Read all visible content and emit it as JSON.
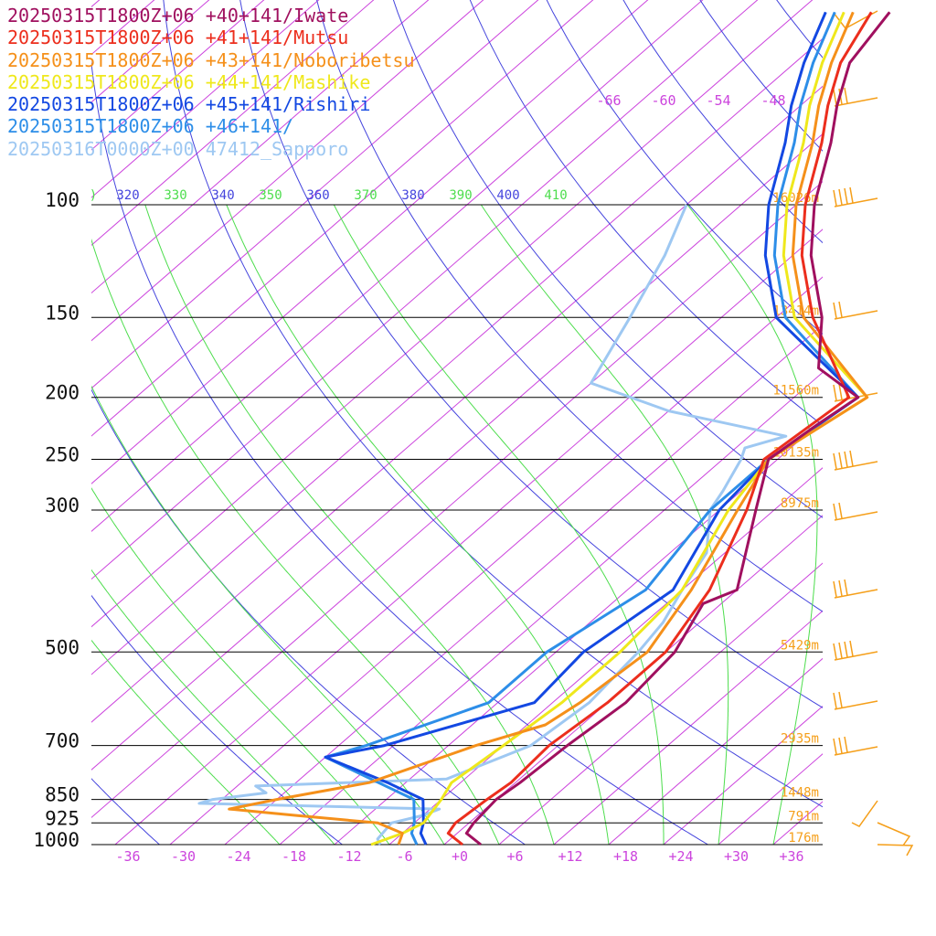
{
  "chart_data": {
    "type": "line",
    "title": "",
    "xlabel": "",
    "ylabel": "",
    "x_axis": {
      "ticks": [
        "-36",
        "-30",
        "-24",
        "-18",
        "-12",
        "-6",
        "+0",
        "+6",
        "+12",
        "+18",
        "+24",
        "+30",
        "+36"
      ],
      "range": [
        -40,
        40
      ]
    },
    "y_axis": {
      "scale": "log",
      "pressure_range": [
        1000,
        100
      ],
      "ticks": [
        {
          "p": 100,
          "label": "100"
        },
        {
          "p": 150,
          "label": "150"
        },
        {
          "p": 200,
          "label": "200"
        },
        {
          "p": 250,
          "label": "250"
        },
        {
          "p": 300,
          "label": "300"
        },
        {
          "p": 500,
          "label": "500"
        },
        {
          "p": 700,
          "label": "700"
        },
        {
          "p": 850,
          "label": "850"
        },
        {
          "p": 925,
          "label": "925"
        },
        {
          "p": 1000,
          "label": "1000"
        }
      ]
    },
    "upper_temp_labels": [
      "-66",
      "-60",
      "-54",
      "-48"
    ],
    "theta_labels": [
      {
        "text": ")",
        "color": "#4ddd4d"
      },
      {
        "text": "320",
        "color": "#4444dd"
      },
      {
        "text": "330",
        "color": "#4ddd4d"
      },
      {
        "text": "340",
        "color": "#4444dd"
      },
      {
        "text": "350",
        "color": "#4ddd4d"
      },
      {
        "text": "360",
        "color": "#4444dd"
      },
      {
        "text": "370",
        "color": "#4ddd4d"
      },
      {
        "text": "380",
        "color": "#4444dd"
      },
      {
        "text": "390",
        "color": "#4ddd4d"
      },
      {
        "text": "400",
        "color": "#4444dd"
      },
      {
        "text": "410",
        "color": "#4ddd4d"
      }
    ],
    "heights": [
      {
        "p": 100,
        "label": "16026m"
      },
      {
        "p": 150,
        "label": "13414m"
      },
      {
        "p": 200,
        "label": "11560m"
      },
      {
        "p": 250,
        "label": "10135m"
      },
      {
        "p": 300,
        "label": "8975m"
      },
      {
        "p": 500,
        "label": "5429m"
      },
      {
        "p": 700,
        "label": "2935m"
      },
      {
        "p": 850,
        "label": "1448m"
      },
      {
        "p": 925,
        "label": "791m"
      },
      {
        "p": 1000,
        "label": "176m"
      }
    ],
    "colors": {
      "isotherm": "#cc44dd",
      "dry_adiabat": "#4444dd",
      "moist_adiabat": "#4ddd4d",
      "isobar": "#000000",
      "wind_barb": "#f59f1a"
    },
    "series": [
      {
        "name": "20250315T1800Z+06 +40+141/Iwate",
        "color": "#a0105f",
        "points": [
          [
            1000,
            2
          ],
          [
            960,
            -1
          ],
          [
            925,
            -1.5
          ],
          [
            850,
            -2
          ],
          [
            800,
            -1.5
          ],
          [
            700,
            -1
          ],
          [
            600,
            0
          ],
          [
            500,
            -1
          ],
          [
            420,
            -4
          ],
          [
            400,
            -2
          ],
          [
            300,
            -10
          ],
          [
            250,
            -15
          ],
          [
            220,
            -14
          ],
          [
            200,
            -13
          ],
          [
            180,
            -21
          ],
          [
            150,
            -27
          ],
          [
            120,
            -36
          ],
          [
            100,
            -42
          ],
          [
            80,
            -48
          ],
          [
            70,
            -52
          ],
          [
            60,
            -56
          ],
          [
            50,
            -58
          ]
        ]
      },
      {
        "name": "20250315T1800Z+06 +41+141/Mutsu",
        "color": "#ec2e1d",
        "points": [
          [
            1000,
            0
          ],
          [
            960,
            -3
          ],
          [
            925,
            -3.5
          ],
          [
            850,
            -3
          ],
          [
            800,
            -2.5
          ],
          [
            700,
            -3
          ],
          [
            600,
            -2
          ],
          [
            500,
            -2
          ],
          [
            400,
            -5
          ],
          [
            300,
            -11
          ],
          [
            250,
            -15.5
          ],
          [
            200,
            -14
          ],
          [
            150,
            -28
          ],
          [
            120,
            -37
          ],
          [
            100,
            -43
          ],
          [
            80,
            -49
          ],
          [
            70,
            -53
          ],
          [
            60,
            -57
          ],
          [
            50,
            -60
          ]
        ]
      },
      {
        "name": "20250315T1800Z+06 +43+141/Noboribetsu",
        "color": "#f5901a",
        "points": [
          [
            1000,
            -7
          ],
          [
            960,
            -8
          ],
          [
            925,
            -12
          ],
          [
            900,
            -22
          ],
          [
            880,
            -30
          ],
          [
            850,
            -26
          ],
          [
            800,
            -18
          ],
          [
            700,
            -11
          ],
          [
            650,
            -6
          ],
          [
            600,
            -5
          ],
          [
            500,
            -4
          ],
          [
            400,
            -7
          ],
          [
            300,
            -12
          ],
          [
            250,
            -15
          ],
          [
            200,
            -12
          ],
          [
            150,
            -29
          ],
          [
            120,
            -38
          ],
          [
            100,
            -44
          ],
          [
            80,
            -50
          ],
          [
            70,
            -54
          ],
          [
            60,
            -58
          ],
          [
            50,
            -62
          ]
        ]
      },
      {
        "name": "20250315T1800Z+06 +44+141/Mashike",
        "color": "#efe81c",
        "points": [
          [
            1000,
            -10
          ],
          [
            960,
            -8
          ],
          [
            925,
            -7
          ],
          [
            850,
            -8
          ],
          [
            800,
            -9
          ],
          [
            700,
            -8
          ],
          [
            600,
            -7
          ],
          [
            500,
            -7
          ],
          [
            400,
            -8
          ],
          [
            300,
            -13
          ],
          [
            250,
            -15
          ],
          [
            200,
            -12
          ],
          [
            150,
            -30
          ],
          [
            120,
            -39
          ],
          [
            100,
            -45
          ],
          [
            80,
            -51
          ],
          [
            70,
            -55
          ],
          [
            60,
            -59
          ],
          [
            50,
            -63
          ]
        ]
      },
      {
        "name": "20250315T1800Z+06 +45+141/Rishiri",
        "color": "#1348e2",
        "points": [
          [
            1000,
            -4
          ],
          [
            960,
            -6
          ],
          [
            925,
            -7
          ],
          [
            850,
            -10
          ],
          [
            800,
            -16
          ],
          [
            730,
            -26
          ],
          [
            700,
            -21
          ],
          [
            600,
            -10
          ],
          [
            500,
            -11
          ],
          [
            400,
            -9
          ],
          [
            300,
            -14
          ],
          [
            250,
            -15
          ],
          [
            200,
            -13
          ],
          [
            150,
            -32
          ],
          [
            120,
            -41
          ],
          [
            100,
            -47
          ],
          [
            80,
            -53
          ],
          [
            70,
            -57
          ],
          [
            60,
            -61
          ],
          [
            50,
            -65
          ]
        ]
      },
      {
        "name": "20250315T1800Z+06 +46+141/",
        "color": "#2d8ee8",
        "points": [
          [
            1000,
            -5
          ],
          [
            960,
            -7
          ],
          [
            925,
            -8
          ],
          [
            850,
            -11
          ],
          [
            800,
            -17
          ],
          [
            730,
            -26
          ],
          [
            700,
            -23
          ],
          [
            600,
            -15
          ],
          [
            500,
            -15
          ],
          [
            400,
            -12
          ],
          [
            300,
            -15
          ],
          [
            250,
            -15
          ],
          [
            200,
            -13
          ],
          [
            150,
            -31
          ],
          [
            120,
            -40
          ],
          [
            100,
            -46
          ],
          [
            80,
            -52
          ],
          [
            70,
            -56
          ],
          [
            60,
            -60
          ],
          [
            50,
            -64
          ]
        ]
      },
      {
        "name": "20250316T0000Z+00 47412_Sapporo",
        "color": "#9ec8f2",
        "points": [
          [
            1000,
            -9
          ],
          [
            980,
            -10
          ],
          [
            925,
            -10.5
          ],
          [
            900,
            -8
          ],
          [
            880,
            -7
          ],
          [
            862,
            -34
          ],
          [
            850,
            -33
          ],
          [
            830,
            -28
          ],
          [
            810,
            -30
          ],
          [
            790,
            -10
          ],
          [
            700,
            -5
          ],
          [
            600,
            -4
          ],
          [
            500,
            -5
          ],
          [
            450,
            -6
          ],
          [
            400,
            -8
          ],
          [
            350,
            -10
          ],
          [
            300,
            -15
          ],
          [
            280,
            -16
          ],
          [
            250,
            -18
          ],
          [
            240,
            -19
          ],
          [
            230,
            -16
          ],
          [
            210,
            -32
          ],
          [
            190,
            -44
          ],
          [
            150,
            -48
          ],
          [
            120,
            -52
          ],
          [
            100,
            -56
          ]
        ]
      }
    ]
  }
}
